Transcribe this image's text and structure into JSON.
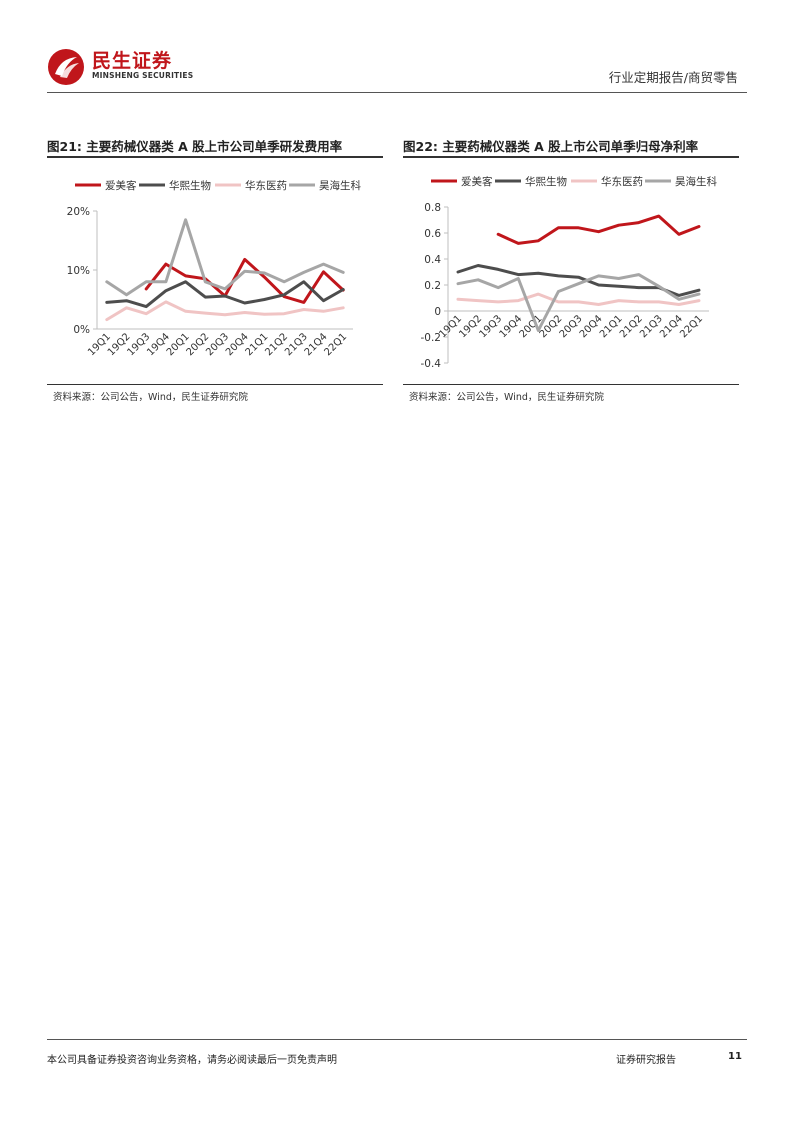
{
  "header": {
    "logo_cn": "民生证券",
    "logo_en": "MINSHENG SECURITIES",
    "report_type": "行业定期报告/商贸零售"
  },
  "figures": [
    {
      "title": "图21: 主要药械仪器类 A 股上市公司单季研发费用率",
      "source": "资料来源：公司公告，Wind，民生证券研究院"
    },
    {
      "title": "图22: 主要药械仪器类 A 股上市公司单季归母净利率",
      "source": "资料来源：公司公告，Wind，民生证券研究院"
    }
  ],
  "chart_data": [
    {
      "type": "line",
      "categories": [
        "19Q1",
        "19Q2",
        "19Q3",
        "19Q4",
        "20Q1",
        "20Q2",
        "20Q3",
        "20Q4",
        "21Q1",
        "21Q2",
        "21Q3",
        "21Q4",
        "22Q1"
      ],
      "ylim": [
        0,
        20
      ],
      "yticks": [
        0,
        10,
        20
      ],
      "ytick_labels": [
        "0%",
        "10%",
        "20%"
      ],
      "series": [
        {
          "name": "爱美客",
          "color": "#c0161b",
          "values": [
            null,
            null,
            6.8,
            11.0,
            9.0,
            8.5,
            5.6,
            11.8,
            8.8,
            5.5,
            4.5,
            9.7,
            6.6
          ]
        },
        {
          "name": "华熙生物",
          "color": "#4d4d4d",
          "values": [
            4.5,
            4.8,
            3.8,
            6.5,
            8.0,
            5.4,
            5.6,
            4.4,
            5.0,
            5.8,
            8.0,
            4.8,
            6.7
          ]
        },
        {
          "name": "华东医药",
          "color": "#f0c4c4",
          "values": [
            1.6,
            3.6,
            2.6,
            4.6,
            3.0,
            2.7,
            2.4,
            2.8,
            2.5,
            2.6,
            3.3,
            3.0,
            3.6
          ]
        },
        {
          "name": "昊海生科",
          "color": "#a6a6a6",
          "values": [
            8.0,
            5.8,
            8.0,
            8.0,
            18.5,
            8.0,
            6.8,
            9.8,
            9.5,
            8.0,
            9.6,
            11.0,
            9.6
          ]
        }
      ]
    },
    {
      "type": "line",
      "categories": [
        "19Q1",
        "19Q2",
        "19Q3",
        "19Q4",
        "20Q1",
        "20Q2",
        "20Q3",
        "20Q4",
        "21Q1",
        "21Q2",
        "21Q3",
        "21Q4",
        "22Q1"
      ],
      "ylim": [
        -0.4,
        0.8
      ],
      "yticks": [
        -0.4,
        -0.2,
        0,
        0.2,
        0.4,
        0.6,
        0.8
      ],
      "ytick_labels": [
        "-0.4",
        "-0.2",
        "0",
        "0.2",
        "0.4",
        "0.6",
        "0.8"
      ],
      "series": [
        {
          "name": "爱美客",
          "color": "#c0161b",
          "values": [
            null,
            null,
            0.59,
            0.52,
            0.54,
            0.64,
            0.64,
            0.61,
            0.66,
            0.68,
            0.73,
            0.59,
            0.65
          ]
        },
        {
          "name": "华熙生物",
          "color": "#4d4d4d",
          "values": [
            0.3,
            0.35,
            0.32,
            0.28,
            0.29,
            0.27,
            0.26,
            0.2,
            0.19,
            0.18,
            0.18,
            0.12,
            0.16
          ]
        },
        {
          "name": "华东医药",
          "color": "#f0c4c4",
          "values": [
            0.09,
            0.08,
            0.07,
            0.08,
            0.13,
            0.07,
            0.07,
            0.05,
            0.08,
            0.07,
            0.07,
            0.05,
            0.08
          ]
        },
        {
          "name": "昊海生科",
          "color": "#a6a6a6",
          "values": [
            0.21,
            0.24,
            0.18,
            0.25,
            -0.15,
            0.15,
            0.21,
            0.27,
            0.25,
            0.28,
            0.19,
            0.09,
            0.13
          ]
        }
      ]
    }
  ],
  "footer": {
    "disclaimer": "本公司具备证券投资咨询业务资格，请务必阅读最后一页免责声明",
    "doc_type": "证券研究报告",
    "page": "11"
  }
}
